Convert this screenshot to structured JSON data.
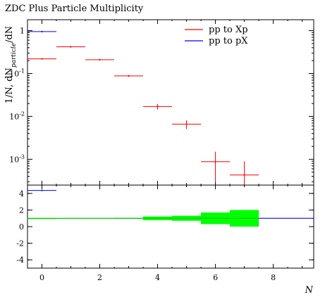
{
  "chart_data": {
    "type": "scatter",
    "title": "ZDC Plus Particle Multiplicity",
    "xlabel": "N",
    "ylabel": "1/N, dN_particle/dN",
    "upper": {
      "yscale": "log",
      "ylim": [
        0.00025,
        1.8
      ],
      "yticks": [
        {
          "value": 1,
          "label": "1"
        },
        {
          "value": 0.1,
          "label": "10^-1"
        },
        {
          "value": 0.01,
          "label": "10^-2"
        },
        {
          "value": 0.001,
          "label": "10^-3"
        }
      ],
      "series": [
        {
          "name": "pp to Xp",
          "color": "#ff0000",
          "points": [
            {
              "x": 0,
              "y": 0.22,
              "xerr": 0.5,
              "ylo": 0.22,
              "yhi": 0.22
            },
            {
              "x": 1,
              "y": 0.42,
              "xerr": 0.5,
              "ylo": 0.42,
              "yhi": 0.42
            },
            {
              "x": 2,
              "y": 0.21,
              "xerr": 0.5,
              "ylo": 0.21,
              "yhi": 0.21
            },
            {
              "x": 3,
              "y": 0.088,
              "xerr": 0.5,
              "ylo": 0.084,
              "yhi": 0.092
            },
            {
              "x": 4,
              "y": 0.017,
              "xerr": 0.5,
              "ylo": 0.0145,
              "yhi": 0.0195
            },
            {
              "x": 5,
              "y": 0.0066,
              "xerr": 0.5,
              "ylo": 0.0051,
              "yhi": 0.0081
            },
            {
              "x": 6,
              "y": 0.00088,
              "xerr": 0.5,
              "ylo": 0.00029,
              "yhi": 0.0015
            },
            {
              "x": 7,
              "y": 0.00043,
              "xerr": 0.5,
              "ylo": 0.00025,
              "yhi": 0.0009
            }
          ]
        },
        {
          "name": "pp to pX",
          "color": "#0000ff",
          "points": [
            {
              "x": 0,
              "y": 0.95,
              "xerr": 0.5,
              "ylo": 0.95,
              "yhi": 0.95
            }
          ]
        }
      ]
    },
    "ratio": {
      "ylim": [
        -5,
        5
      ],
      "yticks": [
        {
          "value": 4,
          "label": "4"
        },
        {
          "value": 2,
          "label": "2"
        },
        {
          "value": 0,
          "label": "0"
        },
        {
          "value": -2,
          "label": "-2"
        },
        {
          "value": -4,
          "label": "-4"
        }
      ],
      "reference_line": {
        "y": 1,
        "color": "#00cc00",
        "x": [
          -0.5,
          7.5
        ]
      },
      "blue_line": {
        "y": 1,
        "color": "#0000ff",
        "x": [
          7.5,
          9.4
        ]
      },
      "band": {
        "color": "#00ff00",
        "bins": [
          {
            "x": 0,
            "lo": 1.0,
            "hi": 1.0
          },
          {
            "x": 1,
            "lo": 0.98,
            "hi": 1.02
          },
          {
            "x": 2,
            "lo": 0.97,
            "hi": 1.03
          },
          {
            "x": 3,
            "lo": 0.94,
            "hi": 1.06
          },
          {
            "x": 4,
            "lo": 0.78,
            "hi": 1.22
          },
          {
            "x": 5,
            "lo": 0.7,
            "hi": 1.3
          },
          {
            "x": 6,
            "lo": 0.3,
            "hi": 1.7
          },
          {
            "x": 7,
            "lo": 0.0,
            "hi": 2.0
          }
        ]
      },
      "blue_point": {
        "x": 0,
        "y": 4.35,
        "xerr": 0.5,
        "color": "#0000ff"
      }
    },
    "xlim": [
      -0.5,
      9.4
    ],
    "xticks": [
      {
        "value": 0,
        "label": "0"
      },
      {
        "value": 2,
        "label": "2"
      },
      {
        "value": 4,
        "label": "4"
      },
      {
        "value": 6,
        "label": "6"
      },
      {
        "value": 8,
        "label": "8"
      }
    ],
    "legend": {
      "position": "top-right"
    }
  }
}
